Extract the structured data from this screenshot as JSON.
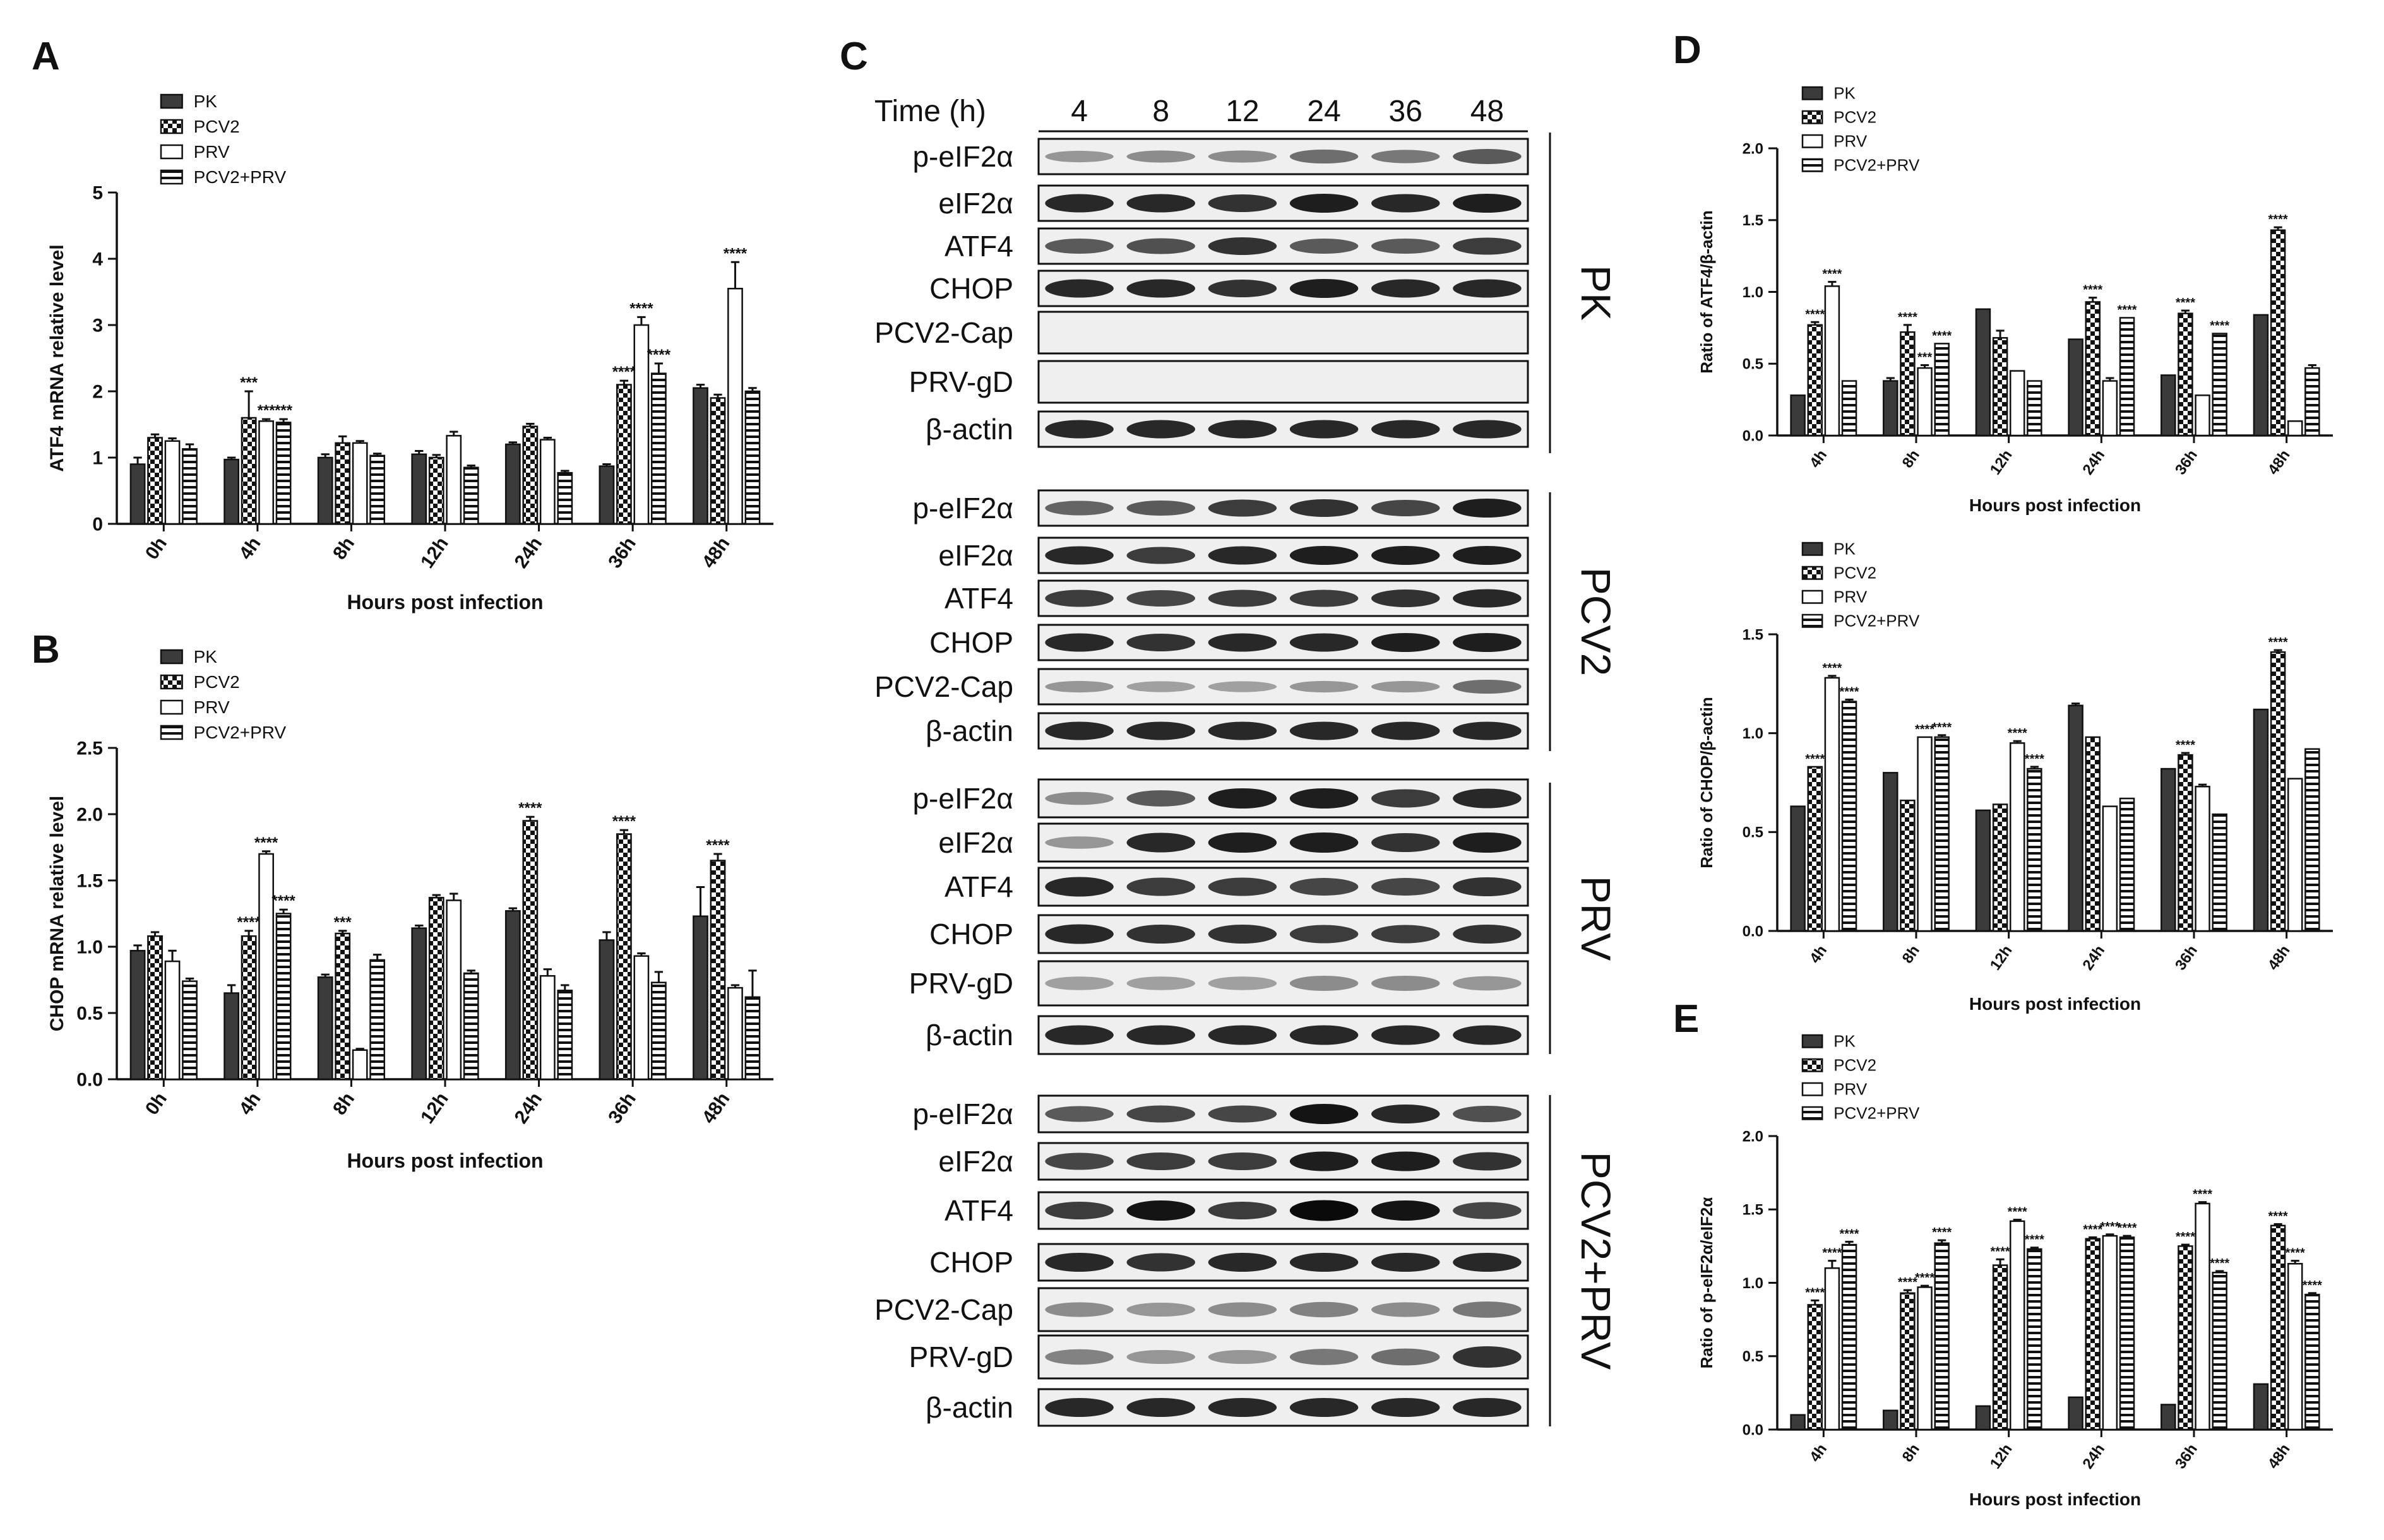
{
  "legend_labels": [
    "PK",
    "PCV2",
    "PRV",
    "PCV2+PRV"
  ],
  "chart_data": [
    {
      "id": "A",
      "type": "bar",
      "panel_label": "A",
      "categories": [
        "0h",
        "4h",
        "8h",
        "12h",
        "24h",
        "36h",
        "48h"
      ],
      "xlabel": "Hours post infection",
      "ylabel": "ATF4 mRNA relative level",
      "ylim": [
        0,
        5
      ],
      "yticks": [
        "0",
        "1",
        "2",
        "3",
        "4",
        "5"
      ],
      "legend": "top-left",
      "grid": false,
      "series": [
        {
          "name": "PK",
          "values": [
            0.9,
            0.97,
            1.0,
            1.05,
            1.2,
            0.87,
            2.05
          ],
          "errors": [
            0.1,
            0.03,
            0.05,
            0.05,
            0.03,
            0.03,
            0.05
          ],
          "sig": [
            "",
            "",
            "",
            "",
            "",
            "",
            ""
          ]
        },
        {
          "name": "PCV2",
          "values": [
            1.3,
            1.6,
            1.22,
            1.0,
            1.47,
            2.1,
            1.9
          ],
          "errors": [
            0.05,
            0.4,
            0.1,
            0.04,
            0.04,
            0.06,
            0.05
          ],
          "sig": [
            "",
            "***",
            "",
            "",
            "",
            "****",
            ""
          ]
        },
        {
          "name": "PRV",
          "values": [
            1.25,
            1.55,
            1.22,
            1.33,
            1.27,
            3.0,
            3.55
          ],
          "errors": [
            0.04,
            0.03,
            0.03,
            0.06,
            0.03,
            0.12,
            0.4
          ],
          "sig": [
            "",
            "***",
            "",
            "",
            "",
            "****",
            "****"
          ]
        },
        {
          "name": "PCV2+PRV",
          "values": [
            1.13,
            1.53,
            1.03,
            0.85,
            0.77,
            2.27,
            2.0
          ],
          "errors": [
            0.07,
            0.05,
            0.03,
            0.03,
            0.03,
            0.15,
            0.05
          ],
          "sig": [
            "",
            "***",
            "",
            "",
            "",
            "****",
            ""
          ]
        }
      ]
    },
    {
      "id": "B",
      "type": "bar",
      "panel_label": "B",
      "categories": [
        "0h",
        "4h",
        "8h",
        "12h",
        "24h",
        "36h",
        "48h"
      ],
      "xlabel": "Hours post infection",
      "ylabel": "CHOP mRNA relative level",
      "ylim": [
        0,
        2.5
      ],
      "yticks": [
        "0.0",
        "0.5",
        "1.0",
        "1.5",
        "2.0",
        "2.5"
      ],
      "legend": "top-left",
      "grid": false,
      "series": [
        {
          "name": "PK",
          "values": [
            0.97,
            0.65,
            0.77,
            1.14,
            1.27,
            1.05,
            1.23
          ],
          "errors": [
            0.04,
            0.06,
            0.02,
            0.02,
            0.02,
            0.06,
            0.22
          ],
          "sig": [
            "",
            "",
            "",
            "",
            "",
            "",
            ""
          ]
        },
        {
          "name": "PCV2",
          "values": [
            1.08,
            1.08,
            1.1,
            1.37,
            1.95,
            1.85,
            1.65
          ],
          "errors": [
            0.03,
            0.04,
            0.02,
            0.02,
            0.03,
            0.03,
            0.05
          ],
          "sig": [
            "",
            "****",
            "***",
            "",
            "****",
            "****",
            "****"
          ]
        },
        {
          "name": "PRV",
          "values": [
            0.89,
            1.7,
            0.22,
            1.35,
            0.78,
            0.93,
            0.69
          ],
          "errors": [
            0.08,
            0.02,
            0.01,
            0.05,
            0.05,
            0.02,
            0.02
          ],
          "sig": [
            "",
            "****",
            "",
            "",
            "",
            "",
            ""
          ]
        },
        {
          "name": "PCV2+PRV",
          "values": [
            0.74,
            1.25,
            0.9,
            0.8,
            0.67,
            0.73,
            0.62
          ],
          "errors": [
            0.02,
            0.03,
            0.04,
            0.02,
            0.04,
            0.08,
            0.2
          ],
          "sig": [
            "",
            "****",
            "",
            "",
            "",
            "",
            ""
          ]
        }
      ]
    },
    {
      "id": "D1",
      "type": "bar",
      "panel_label": "D",
      "categories": [
        "4h",
        "8h",
        "12h",
        "24h",
        "36h",
        "48h"
      ],
      "xlabel": "Hours post infection",
      "ylabel": "Ratio of ATF4/β-actin",
      "ylim": [
        0,
        2.0
      ],
      "yticks": [
        "0.0",
        "0.5",
        "1.0",
        "1.5",
        "2.0"
      ],
      "legend": "top-left",
      "grid": false,
      "series": [
        {
          "name": "PK",
          "values": [
            0.28,
            0.38,
            0.88,
            0.67,
            0.42,
            0.84
          ],
          "errors": [
            0,
            0.02,
            0,
            0,
            0,
            0
          ],
          "sig": [
            "",
            "",
            "",
            "",
            "",
            ""
          ]
        },
        {
          "name": "PCV2",
          "values": [
            0.77,
            0.72,
            0.68,
            0.93,
            0.85,
            1.43
          ],
          "errors": [
            0.02,
            0.05,
            0.05,
            0.03,
            0.02,
            0.02
          ],
          "sig": [
            "****",
            "****",
            "",
            "****",
            "****",
            "****"
          ]
        },
        {
          "name": "PRV",
          "values": [
            1.04,
            0.47,
            0.45,
            0.38,
            0.28,
            0.1
          ],
          "errors": [
            0.03,
            0.02,
            0,
            0.02,
            0,
            0
          ],
          "sig": [
            "****",
            "***",
            "",
            "",
            "",
            ""
          ]
        },
        {
          "name": "PCV2+PRV",
          "values": [
            0.38,
            0.64,
            0.38,
            0.82,
            0.71,
            0.47
          ],
          "errors": [
            0,
            0,
            0,
            0,
            0,
            0.02
          ],
          "sig": [
            "",
            "****",
            "",
            "****",
            "****",
            ""
          ]
        }
      ]
    },
    {
      "id": "D2",
      "type": "bar",
      "panel_label": "",
      "categories": [
        "4h",
        "8h",
        "12h",
        "24h",
        "36h",
        "48h"
      ],
      "xlabel": "Hours post infection",
      "ylabel": "Ratio of CHOP/β-actin",
      "ylim": [
        0,
        1.5
      ],
      "yticks": [
        "0.0",
        "0.5",
        "1.0",
        "1.5"
      ],
      "legend": "top-left",
      "grid": false,
      "series": [
        {
          "name": "PK",
          "values": [
            0.63,
            0.8,
            0.61,
            1.14,
            0.82,
            1.12
          ],
          "errors": [
            0,
            0,
            0,
            0.01,
            0,
            0
          ],
          "sig": [
            "",
            "",
            "",
            "",
            "",
            ""
          ]
        },
        {
          "name": "PCV2",
          "values": [
            0.83,
            0.66,
            0.64,
            0.98,
            0.89,
            1.41
          ],
          "errors": [
            0,
            0,
            0,
            0,
            0.01,
            0.01
          ],
          "sig": [
            "****",
            "",
            "",
            "",
            "****",
            "****"
          ]
        },
        {
          "name": "PRV",
          "values": [
            1.28,
            0.98,
            0.95,
            0.63,
            0.73,
            0.77
          ],
          "errors": [
            0.01,
            0,
            0.01,
            0,
            0.01,
            0
          ],
          "sig": [
            "****",
            "****",
            "****",
            "",
            "",
            ""
          ]
        },
        {
          "name": "PCV2+PRV",
          "values": [
            1.16,
            0.98,
            0.82,
            0.67,
            0.59,
            0.92
          ],
          "errors": [
            0.01,
            0.01,
            0.01,
            0,
            0,
            0
          ],
          "sig": [
            "****",
            "****",
            "****",
            "",
            "",
            ""
          ]
        }
      ]
    },
    {
      "id": "E",
      "type": "bar",
      "panel_label": "E",
      "categories": [
        "4h",
        "8h",
        "12h",
        "24h",
        "36h",
        "48h"
      ],
      "xlabel": "Hours post infection",
      "ylabel": "Ratio of p-eIF2α/eIF2α",
      "ylim": [
        0,
        2.0
      ],
      "yticks": [
        "0.0",
        "0.5",
        "1.0",
        "1.5",
        "2.0"
      ],
      "legend": "top-left",
      "grid": false,
      "series": [
        {
          "name": "PK",
          "values": [
            0.1,
            0.13,
            0.16,
            0.22,
            0.17,
            0.31
          ],
          "errors": [
            0,
            0,
            0,
            0,
            0,
            0
          ],
          "sig": [
            "",
            "",
            "",
            "",
            "",
            ""
          ]
        },
        {
          "name": "PCV2",
          "values": [
            0.85,
            0.93,
            1.12,
            1.3,
            1.25,
            1.39
          ],
          "errors": [
            0.03,
            0.02,
            0.04,
            0.01,
            0.01,
            0.01
          ],
          "sig": [
            "****",
            "****",
            "****",
            "****",
            "****",
            "****"
          ]
        },
        {
          "name": "PRV",
          "values": [
            1.1,
            0.97,
            1.42,
            1.32,
            1.54,
            1.13
          ],
          "errors": [
            0.05,
            0.01,
            0.01,
            0.01,
            0.01,
            0.02
          ],
          "sig": [
            "****",
            "****",
            "****",
            "****",
            "****",
            "****"
          ]
        },
        {
          "name": "PCV2+PRV",
          "values": [
            1.26,
            1.27,
            1.23,
            1.31,
            1.07,
            0.92
          ],
          "errors": [
            0.02,
            0.02,
            0.01,
            0.01,
            0.01,
            0.01
          ],
          "sig": [
            "****",
            "****",
            "****",
            "****",
            "****",
            "****"
          ]
        }
      ]
    }
  ],
  "blot": {
    "panel_label": "C",
    "time_label": "Time (h)",
    "times": [
      "4",
      "8",
      "12",
      "24",
      "36",
      "48"
    ],
    "groups": [
      {
        "name": "PK",
        "bands": [
          "p-eIF2α",
          "eIF2α",
          "ATF4",
          "CHOP",
          "PCV2-Cap",
          "PRV-gD",
          "β-actin"
        ],
        "intensity": [
          [
            0.3,
            0.35,
            0.35,
            0.5,
            0.45,
            0.6
          ],
          [
            0.85,
            0.85,
            0.8,
            0.9,
            0.85,
            0.9
          ],
          [
            0.6,
            0.65,
            0.8,
            0.6,
            0.6,
            0.75
          ],
          [
            0.85,
            0.85,
            0.8,
            0.9,
            0.85,
            0.85
          ],
          [
            0,
            0,
            0,
            0,
            0,
            0
          ],
          [
            0,
            0,
            0,
            0,
            0,
            0
          ],
          [
            0.85,
            0.85,
            0.85,
            0.85,
            0.85,
            0.85
          ]
        ]
      },
      {
        "name": "PCV2",
        "bands": [
          "p-eIF2α",
          "eIF2α",
          "ATF4",
          "CHOP",
          "PCV2-Cap",
          "β-actin"
        ],
        "intensity": [
          [
            0.55,
            0.6,
            0.75,
            0.8,
            0.7,
            0.9
          ],
          [
            0.85,
            0.75,
            0.85,
            0.9,
            0.9,
            0.9
          ],
          [
            0.75,
            0.7,
            0.75,
            0.75,
            0.8,
            0.85
          ],
          [
            0.85,
            0.8,
            0.85,
            0.85,
            0.9,
            0.9
          ],
          [
            0.3,
            0.25,
            0.25,
            0.3,
            0.3,
            0.5
          ],
          [
            0.85,
            0.85,
            0.85,
            0.85,
            0.85,
            0.85
          ]
        ]
      },
      {
        "name": "PRV",
        "bands": [
          "p-eIF2α",
          "eIF2α",
          "ATF4",
          "CHOP",
          "PRV-gD",
          "β-actin"
        ],
        "intensity": [
          [
            0.35,
            0.6,
            0.9,
            0.9,
            0.75,
            0.85
          ],
          [
            0.3,
            0.85,
            0.9,
            0.9,
            0.8,
            0.9
          ],
          [
            0.85,
            0.75,
            0.75,
            0.7,
            0.7,
            0.8
          ],
          [
            0.85,
            0.8,
            0.8,
            0.75,
            0.75,
            0.8
          ],
          [
            0.25,
            0.25,
            0.25,
            0.35,
            0.35,
            0.3
          ],
          [
            0.85,
            0.85,
            0.85,
            0.85,
            0.85,
            0.85
          ]
        ]
      },
      {
        "name": "PCV2+PRV",
        "bands": [
          "p-eIF2α",
          "eIF2α",
          "ATF4",
          "CHOP",
          "PCV2-Cap",
          "PRV-gD",
          "β-actin"
        ],
        "intensity": [
          [
            0.6,
            0.7,
            0.7,
            0.95,
            0.85,
            0.65
          ],
          [
            0.7,
            0.75,
            0.75,
            0.9,
            0.9,
            0.8
          ],
          [
            0.75,
            0.95,
            0.75,
            1.0,
            0.95,
            0.7
          ],
          [
            0.85,
            0.8,
            0.85,
            0.85,
            0.85,
            0.85
          ],
          [
            0.35,
            0.3,
            0.35,
            0.4,
            0.35,
            0.45
          ],
          [
            0.4,
            0.3,
            0.3,
            0.45,
            0.5,
            0.8
          ],
          [
            0.85,
            0.85,
            0.85,
            0.85,
            0.85,
            0.85
          ]
        ]
      }
    ]
  }
}
